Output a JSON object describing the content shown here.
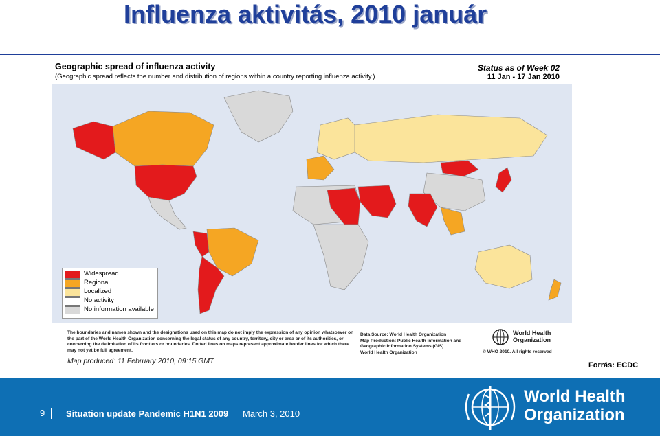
{
  "slide": {
    "title": "Influenza aktivitás, 2010 január",
    "source": "Forrás: ECDC"
  },
  "map": {
    "title": "Geographic spread of influenza activity",
    "subtitle": "(Geographic spread reflects the number and distribution of regions within a country reporting influenza activity.)",
    "status_line1": "Status as of Week 02",
    "status_line2": "11 Jan - 17 Jan 2010",
    "legend": [
      {
        "label": "Widespread",
        "color": "#e31a1c"
      },
      {
        "label": "Regional",
        "color": "#f5a623"
      },
      {
        "label": "Localized",
        "color": "#fbe49b"
      },
      {
        "label": "No activity",
        "color": "#ffffff"
      },
      {
        "label": "No information available",
        "color": "#d9d9d9"
      }
    ],
    "disclaimer": "The boundaries and names shown and the designations used on this map do not imply the expression of any opinion whatsoever on the part of the World Health Organization concerning the legal status of any country, territory, city or area or of its authorities, or concerning the delimitation of its frontiers or boundaries. Dotted lines on maps represent approximate border lines for which there may not yet be full agreement.",
    "produced": "Map produced: 11 February 2010, 09:15 GMT",
    "data_source": "Data Source: World Health Organization",
    "map_production": "Map Production: Public Health Information and Geographic Information Systems (GIS)",
    "who_org": "World Health Organization",
    "who_small_line1": "World Health",
    "who_small_line2": "Organization",
    "copyright": "© WHO 2010. All rights reserved"
  },
  "colors": {
    "widespread": "#e31a1c",
    "regional": "#f5a623",
    "localized": "#fbe49b",
    "no_activity": "#ffffff",
    "no_info": "#d9d9d9",
    "ocean": "#dfe6f2",
    "footer": "#0e6fb4",
    "title": "#1f3f9a"
  },
  "footer": {
    "page": "9",
    "text": "Situation update Pandemic H1N1 2009",
    "date": "March 3, 2010",
    "who_line1": "World Health",
    "who_line2": "Organization"
  }
}
